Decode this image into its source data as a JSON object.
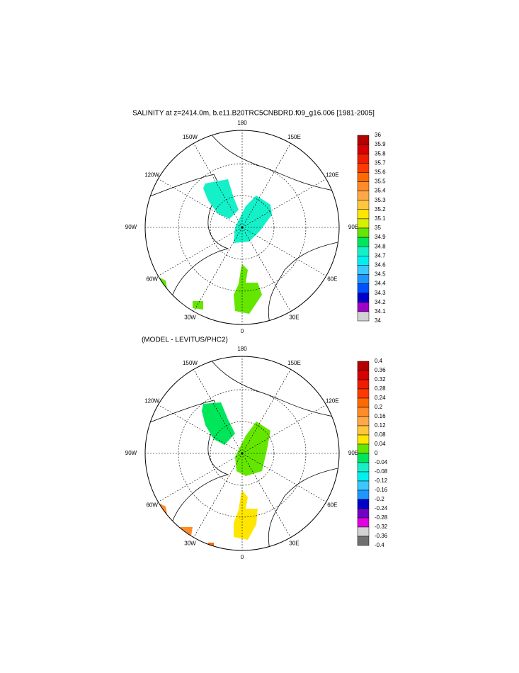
{
  "panels": [
    {
      "title": "SALINITY at z=2414.0m, b.e11.B20TRC5CNBDRD.f09_g16.006 [1981-2005]",
      "lon_labels": [
        "180",
        "150E",
        "120E",
        "90E",
        "60E",
        "30E",
        "0",
        "30W",
        "60W",
        "90W",
        "120W",
        "150W"
      ],
      "levels": [
        36,
        35.9,
        35.8,
        35.7,
        35.6,
        35.5,
        35.4,
        35.3,
        35.2,
        35.1,
        35,
        34.9,
        34.8,
        34.7,
        34.6,
        34.5,
        34.4,
        34.3,
        34.2,
        34.1,
        34
      ],
      "colors": [
        "#b40000",
        "#d70000",
        "#ee1c00",
        "#ff3a00",
        "#ff6a00",
        "#ff8c28",
        "#ffa84a",
        "#ffc83c",
        "#ffe600",
        "#d7f000",
        "#64e600",
        "#00e65a",
        "#14f0c8",
        "#00f0f0",
        "#3cc8ff",
        "#1e96ff",
        "#0050ff",
        "#0000c8",
        "#a000c8",
        "#d2d2d2"
      ]
    },
    {
      "title": "(MODEL - LEVITUS/PHC2)",
      "lon_labels": [
        "180",
        "150E",
        "120E",
        "90E",
        "60E",
        "30E",
        "0",
        "30W",
        "60W",
        "90W",
        "120W",
        "150W"
      ],
      "levels": [
        0.4,
        0.36,
        0.32,
        0.28,
        0.24,
        0.2,
        0.16,
        0.12,
        0.08,
        0.04,
        0,
        -0.04,
        -0.08,
        -0.12,
        -0.16,
        -0.2,
        -0.24,
        -0.28,
        -0.32,
        -0.36,
        -0.4
      ],
      "colors": [
        "#b40000",
        "#d70000",
        "#ee1c00",
        "#ff3a00",
        "#ff6a00",
        "#ff8c28",
        "#ffa84a",
        "#ffc83c",
        "#ffe600",
        "#64e600",
        "#00e65a",
        "#14f0c8",
        "#00f0f0",
        "#3cc8ff",
        "#1e96ff",
        "#0000c8",
        "#7000c8",
        "#e000e0",
        "#d2d2d2",
        "#707070"
      ]
    }
  ]
}
